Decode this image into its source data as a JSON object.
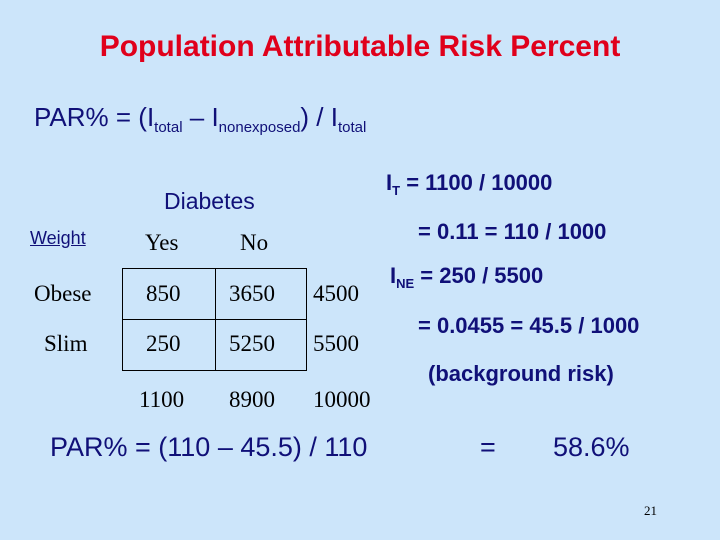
{
  "title": "Population Attributable Risk Percent",
  "formula": {
    "lead": "PAR% = (I",
    "sub1": "total",
    "mid": " – I",
    "sub2": "nonexposed",
    "tail": ")  / I",
    "sub3": "total"
  },
  "table": {
    "group_header": "Diabetes",
    "row_header": "Weight",
    "columns": [
      "Yes",
      "No"
    ],
    "rows": [
      {
        "label": "Obese",
        "yes": "850",
        "no": "3650",
        "total": "4500"
      },
      {
        "label": "Slim",
        "yes": "250",
        "no": "5250",
        "total": "5500"
      }
    ],
    "totals": {
      "yes": "1100",
      "no": "8900",
      "grand": "10000"
    }
  },
  "calculations": {
    "it_symbol": "I",
    "it_sub": "T",
    "it_line1": " = 1100 / 10000",
    "it_line2": "= 0.11 = 110 / 1000",
    "ine_symbol": "I",
    "ine_sub": "NE",
    "ine_line1": " = 250 / 5500",
    "ine_line2": "= 0.0455 = 45.5 / 1000",
    "background_note": "(background risk)"
  },
  "par_result": {
    "expression": "PAR% = (110 – 45.5) / 110",
    "equals": "=",
    "value": "58.6%"
  },
  "page_number": "21",
  "colors": {
    "background": "#cce5fa",
    "title": "#e0001b",
    "text": "#101078"
  }
}
